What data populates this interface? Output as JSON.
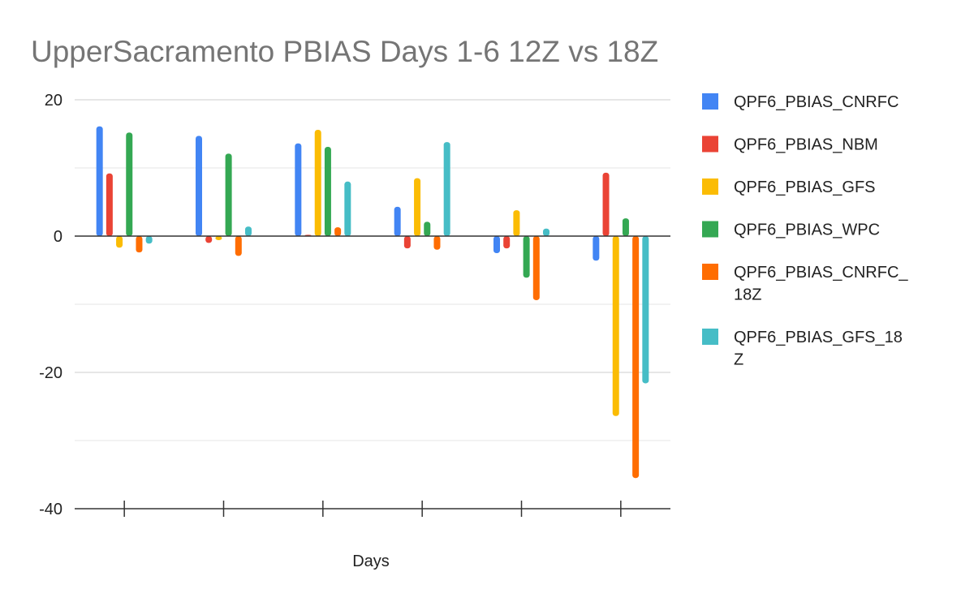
{
  "chart_data": {
    "type": "bar",
    "title": "UpperSacramento PBIAS Days 1-6 12Z vs 18Z",
    "xlabel": "Days",
    "ylabel": "",
    "categories": [
      "",
      "",
      "",
      "",
      "",
      ""
    ],
    "ylim": [
      -40,
      20
    ],
    "yticks": [
      20,
      0,
      -20,
      -40
    ],
    "grid": true,
    "legend_position": "right",
    "series": [
      {
        "name": "QPF6_PBIAS_CNRFC",
        "color": "#4285F4",
        "values": [
          16.1,
          14.7,
          13.6,
          4.3,
          -2.5,
          -3.6
        ]
      },
      {
        "name": "QPF6_PBIAS_NBM",
        "color": "#EA4335",
        "values": [
          9.2,
          -1.0,
          0.2,
          -1.8,
          -1.8,
          9.3
        ]
      },
      {
        "name": "QPF6_PBIAS_GFS",
        "color": "#FBBC04",
        "values": [
          -1.7,
          -0.6,
          15.6,
          8.5,
          3.8,
          -26.4
        ]
      },
      {
        "name": "QPF6_PBIAS_WPC",
        "color": "#34A853",
        "values": [
          15.2,
          12.1,
          13.1,
          2.1,
          -6.1,
          2.6
        ]
      },
      {
        "name": "QPF6_PBIAS_CNRFC_18Z",
        "color": "#FF6D01",
        "values": [
          -2.4,
          -2.9,
          1.3,
          -2.0,
          -9.4,
          -35.5
        ]
      },
      {
        "name": "QPF6_PBIAS_GFS_18Z",
        "color": "#46BDC6",
        "values": [
          -1.1,
          1.4,
          8.0,
          13.8,
          1.1,
          -21.6
        ]
      }
    ],
    "legend_lines": [
      [
        "QPF6_PBIAS_CNRFC"
      ],
      [
        "QPF6_PBIAS_NBM"
      ],
      [
        "QPF6_PBIAS_GFS"
      ],
      [
        "QPF6_PBIAS_WPC"
      ],
      [
        "QPF6_PBIAS_CNRFC_",
        "18Z"
      ],
      [
        "QPF6_PBIAS_GFS_18",
        "Z"
      ]
    ]
  }
}
